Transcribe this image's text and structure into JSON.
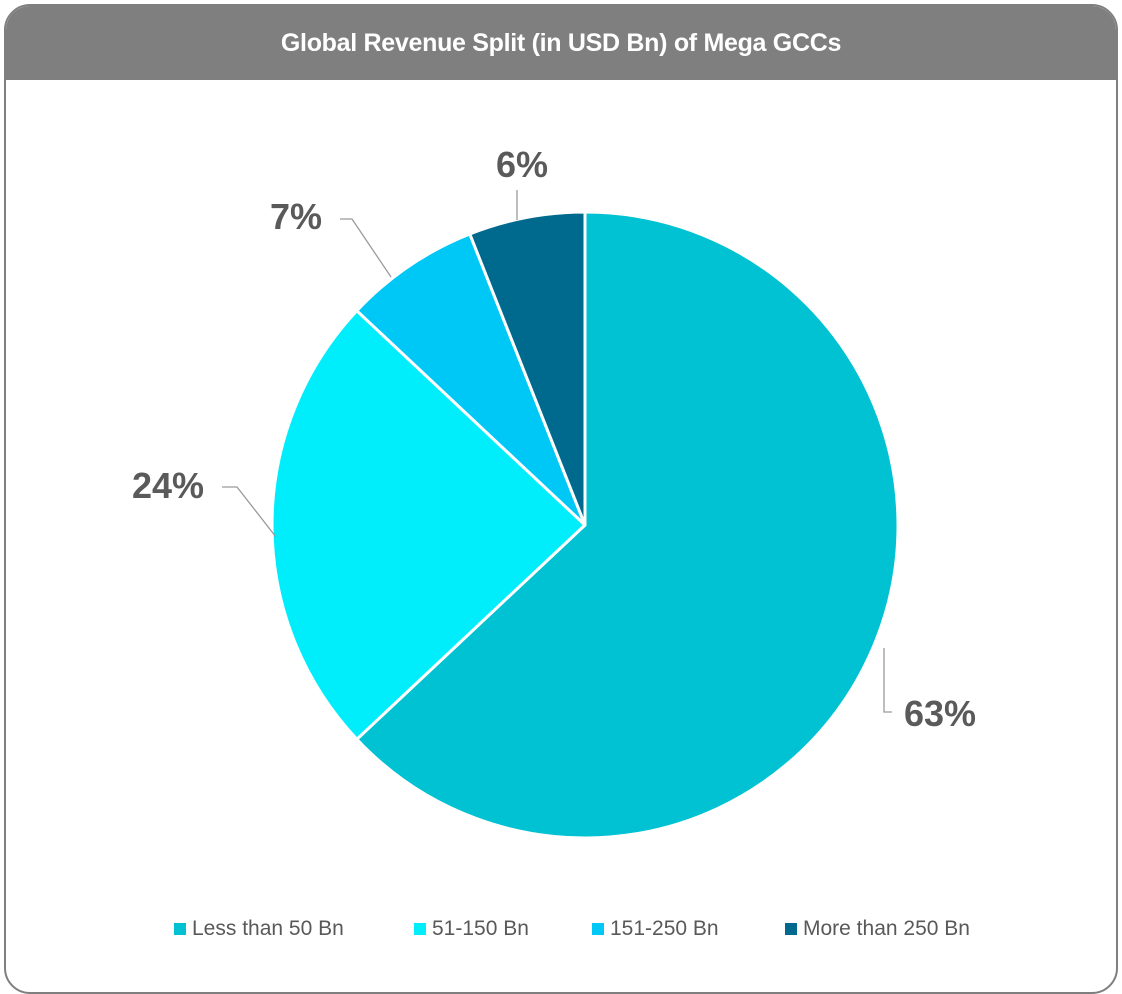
{
  "header": {
    "title": "Global Revenue Split (in USD Bn) of Mega GCCs"
  },
  "chart_data": {
    "type": "pie",
    "title": "Global Revenue Split (in USD Bn) of Mega GCCs",
    "start_angle_deg": 0,
    "direction": "clockwise",
    "legend_position": "bottom",
    "slices": [
      {
        "name": "Less than 50 Bn",
        "value": 63,
        "label": "63%",
        "color": "#00c2d2"
      },
      {
        "name": "51-150 Bn",
        "value": 24,
        "label": "24%",
        "color": "#00eefc"
      },
      {
        "name": "151-250 Bn",
        "value": 7,
        "label": "7%",
        "color": "#00c8f6"
      },
      {
        "name": "More than 250 Bn",
        "value": 6,
        "label": "6%",
        "color": "#006a8e"
      }
    ]
  }
}
